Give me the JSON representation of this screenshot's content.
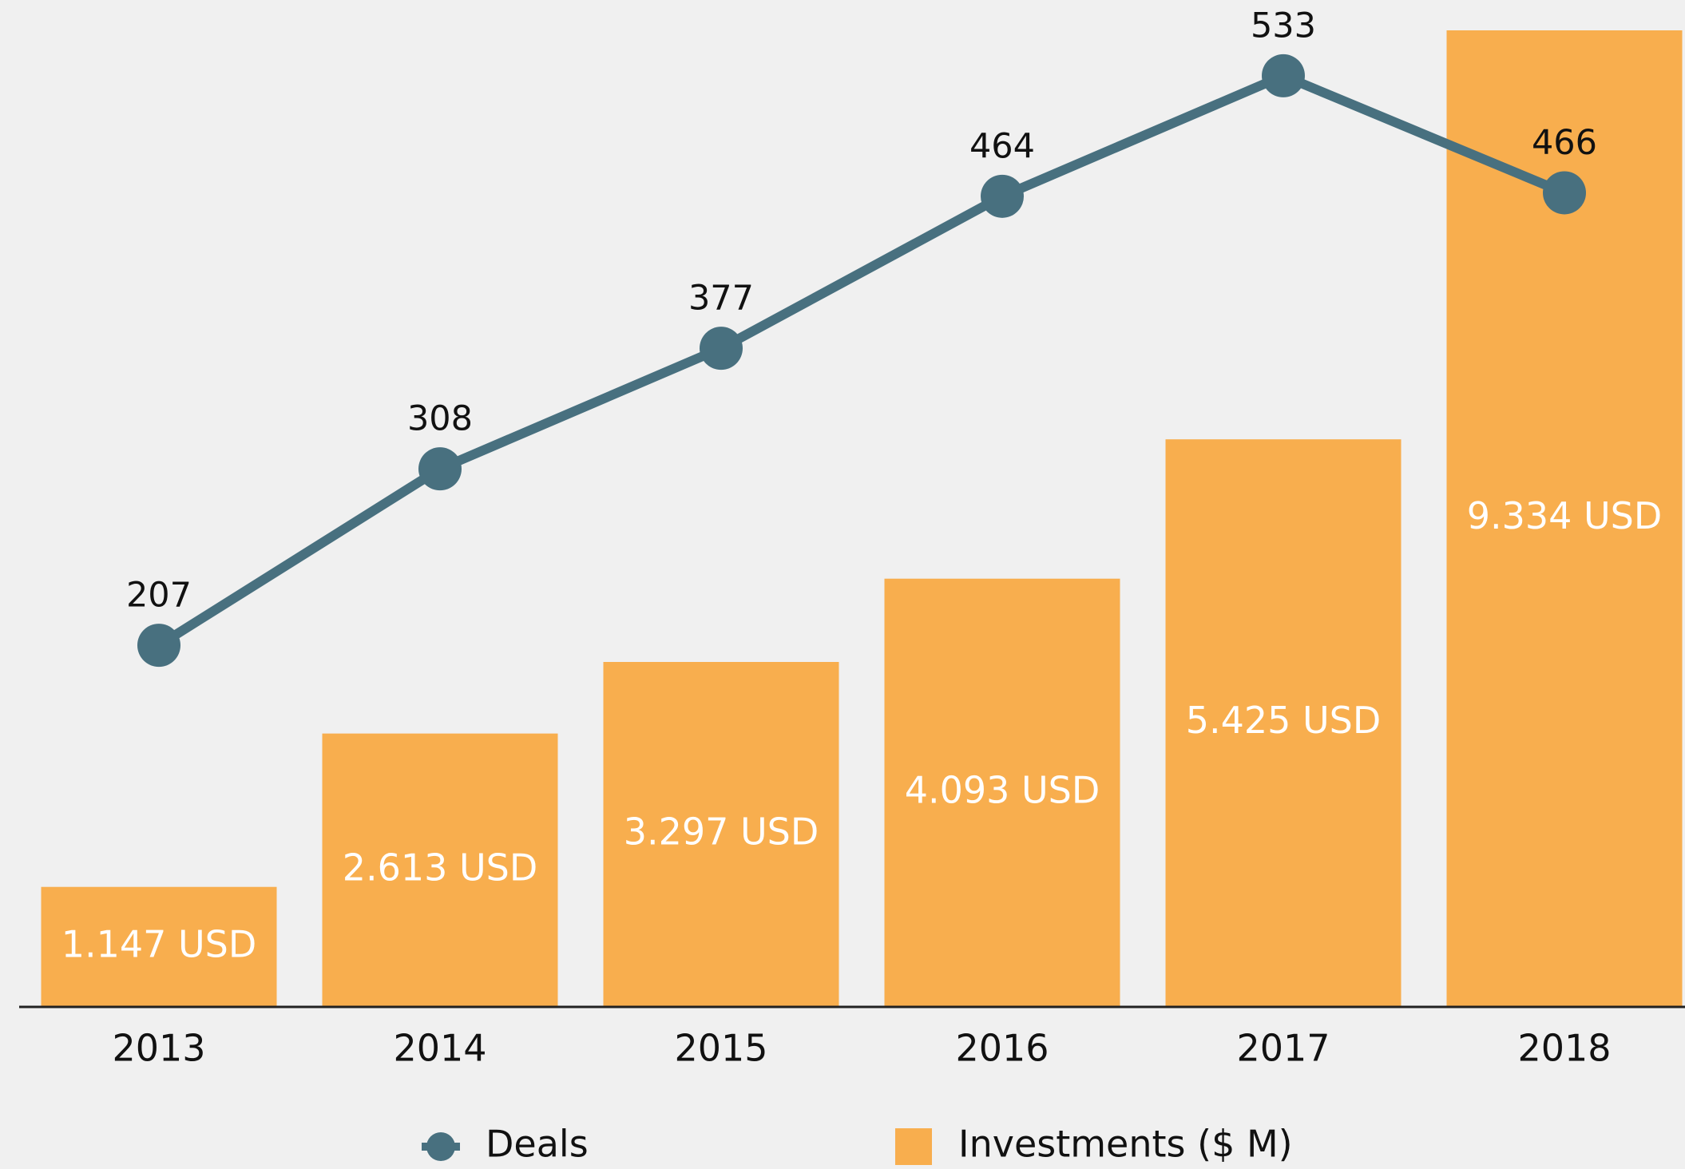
{
  "chart_data": {
    "type": "bar_line",
    "categories": [
      "2013",
      "2014",
      "2015",
      "2016",
      "2017",
      "2018"
    ],
    "series": [
      {
        "name": "Investments ($ M)",
        "type": "bar",
        "color": "#f8ae4e",
        "values": [
          1147,
          2613,
          3297,
          4093,
          5425,
          9334
        ],
        "value_labels": [
          "1.147 USD",
          "2.613 USD",
          "3.297 USD",
          "4.093 USD",
          "5.425 USD",
          "9.334 USD"
        ]
      },
      {
        "name": "Deals",
        "type": "line",
        "axis": "y2",
        "color": "#48707f",
        "values": [
          207,
          308,
          377,
          464,
          533,
          466
        ]
      }
    ],
    "ylim": [
      0,
      9334
    ],
    "y2lim": [
      0,
      559
    ],
    "legend": "bottom"
  }
}
